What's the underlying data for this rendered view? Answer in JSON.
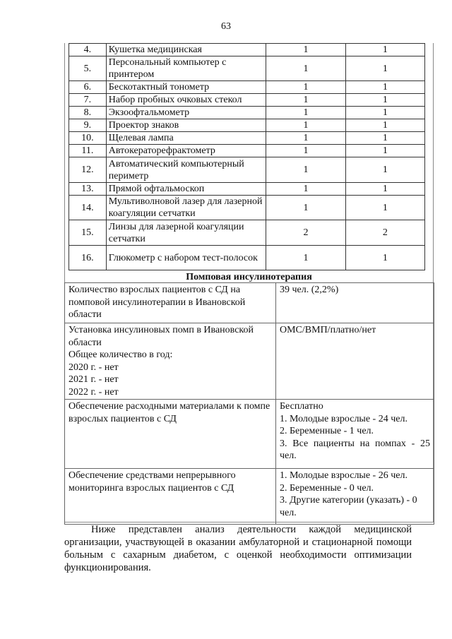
{
  "page_number": "63",
  "equipment": [
    {
      "n": "4.",
      "name": "Кушетка медицинская",
      "a": "1",
      "b": "1"
    },
    {
      "n": "5.",
      "name": "Персональный компьютер с принтером",
      "a": "1",
      "b": "1"
    },
    {
      "n": "6.",
      "name": "Бескотактный тонометр",
      "a": "1",
      "b": "1"
    },
    {
      "n": "7.",
      "name": "Набор пробных очковых стекол",
      "a": "1",
      "b": "1"
    },
    {
      "n": "8.",
      "name": "Экзоофтальмометр",
      "a": "1",
      "b": "1"
    },
    {
      "n": "9.",
      "name": "Проектор знаков",
      "a": "1",
      "b": "1"
    },
    {
      "n": "10.",
      "name": "Щелевая лампа",
      "a": "1",
      "b": "1"
    },
    {
      "n": "11.",
      "name": "Автокераторефрактометр",
      "a": "1",
      "b": "1"
    },
    {
      "n": "12.",
      "name": "Автоматический компьютерный периметр",
      "a": "1",
      "b": "1"
    },
    {
      "n": "13.",
      "name": "Прямой офтальмоскоп",
      "a": "1",
      "b": "1"
    },
    {
      "n": "14.",
      "name": "Мультиволновой лазер для лазерной коагуляции сетчатки",
      "a": "1",
      "b": "1"
    },
    {
      "n": "15.",
      "name": "Линзы для лазерной коагуляции сетчатки",
      "a": "2",
      "b": "2"
    },
    {
      "n": "16.",
      "name": "Глюкометр с набором тест-полосок",
      "a": "1",
      "b": "1"
    }
  ],
  "section_title": "Помповая инсулинотерапия",
  "pump": {
    "r1": {
      "left": "Количество взрослых пациентов с СД на помповой инсулинотерапии в Ивановской области",
      "right": "39 чел. (2,2%)"
    },
    "r2": {
      "left": [
        "Установка инсулиновых помп в Ивановской области",
        "Общее количество в год:",
        "2020 г. - нет",
        "2021 г. - нет",
        "2022 г. - нет"
      ],
      "right": "ОМС/ВМП/платно/нет"
    },
    "r3": {
      "left": "Обеспечение расходными материалами к помпе взрослых пациентов с СД",
      "right": [
        "Бесплатно",
        "1. Молодые взрослые - 24 чел.",
        "2. Беременные - 1 чел.",
        "3. Все пациенты на помпах - 25 чел."
      ]
    },
    "r4": {
      "left": "Обеспечение средствами непрерывного мониторинга взрослых пациентов с СД",
      "right": [
        "1. Молодые взрослые - 26 чел.",
        "2. Беременные - 0 чел.",
        "3. Другие категории (указать) - 0 чел."
      ]
    }
  },
  "paragraph": "Ниже представлен анализ деятельности каждой медицинской организации, участвующей в оказании амбулаторной и стационарной помощи больным с сахарным диабетом, с оценкой необходимости оптимизации функционирования."
}
